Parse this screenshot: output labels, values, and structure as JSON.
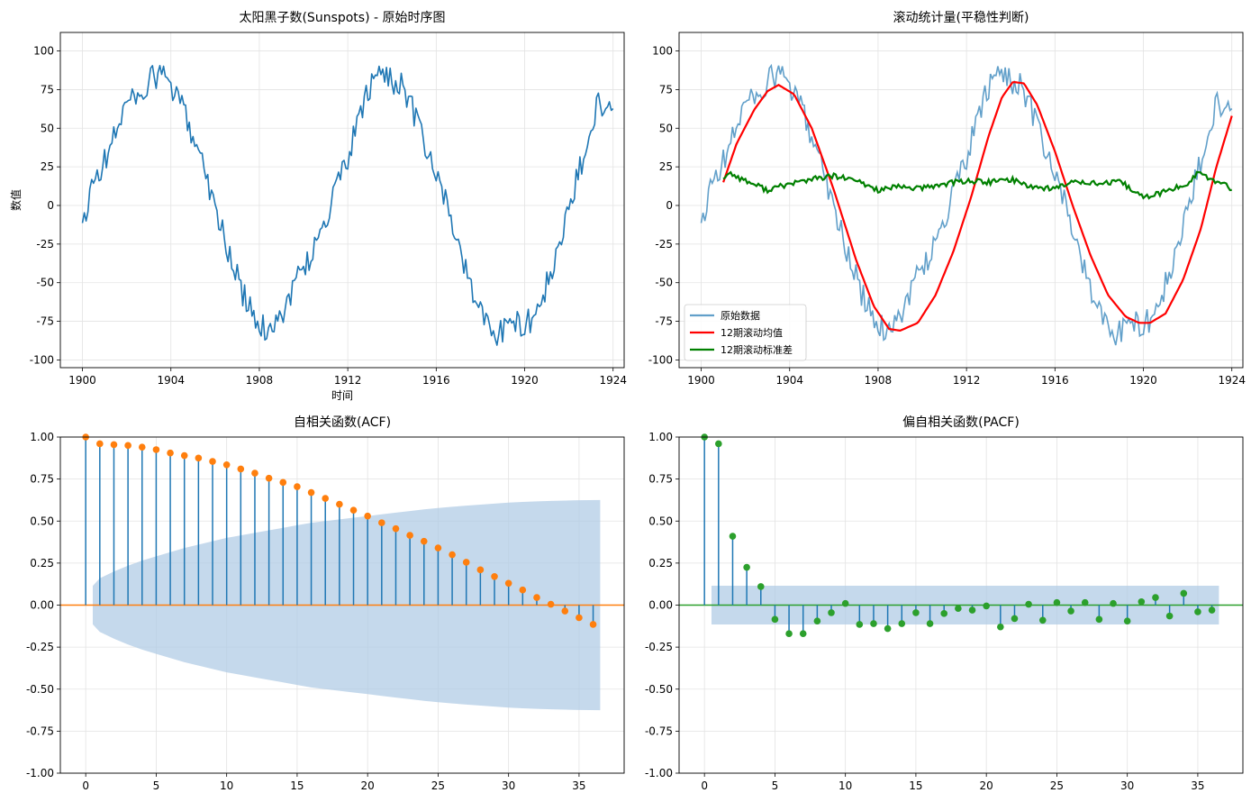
{
  "colors": {
    "blue": "#1f77b4",
    "orange": "#ff7f0e",
    "red": "#ff0000",
    "green": "#008000",
    "pacf_green": "#2ca02c",
    "band": "#aecbe5",
    "grid": "#e3e3e3"
  },
  "chart_data": [
    {
      "type": "line",
      "title": "太阳黑子数(Sunspots) - 原始时序图",
      "xlabel": "时间",
      "ylabel": "数值",
      "xlim": [
        1899.0,
        1924.5
      ],
      "ylim": [
        -105,
        112
      ],
      "x_ticks": [
        1900,
        1904,
        1908,
        1912,
        1916,
        1920,
        1924
      ],
      "y_ticks": [
        100,
        75,
        50,
        25,
        0,
        -25,
        -50,
        -75,
        -100
      ],
      "grid": true,
      "series": [
        {
          "x_start": 1900.0,
          "x_end": 1924.0,
          "keypoints_x": [
            1900.0,
            1900.2,
            1900.4,
            1900.8,
            1901.3,
            1901.8,
            1902.5,
            1903.2,
            1903.6,
            1904.0,
            1904.6,
            1905.2,
            1905.6,
            1906.0,
            1906.6,
            1907.2,
            1907.8,
            1908.0,
            1908.6,
            1909.2,
            1909.8,
            1910.4,
            1911.0,
            1911.6,
            1912.2,
            1912.8,
            1913.5,
            1914.0,
            1914.6,
            1915.2,
            1915.8,
            1916.4,
            1917.0,
            1917.6,
            1918.2,
            1918.8,
            1919.2,
            1919.8,
            1920.2,
            1920.8,
            1921.4,
            1922.0,
            1922.6,
            1923.0,
            1923.4,
            1923.8,
            1924.0
          ],
          "keypoints_y": [
            -12,
            -12,
            18,
            22,
            38,
            62,
            72,
            82,
            86,
            76,
            60,
            40,
            20,
            0,
            -30,
            -55,
            -75,
            -80,
            -78,
            -65,
            -45,
            -30,
            -10,
            15,
            40,
            70,
            88,
            82,
            75,
            50,
            25,
            5,
            -25,
            -55,
            -75,
            -82,
            -80,
            -76,
            -75,
            -60,
            -35,
            -5,
            30,
            55,
            68,
            62,
            69
          ],
          "noise": 9
        }
      ]
    },
    {
      "type": "line",
      "title": "滚动统计量(平稳性判断)",
      "xlim": [
        1899.0,
        1924.5
      ],
      "ylim": [
        -105,
        112
      ],
      "x_ticks": [
        1900,
        1904,
        1908,
        1912,
        1916,
        1920,
        1924
      ],
      "y_ticks": [
        100,
        75,
        50,
        25,
        0,
        -25,
        -50,
        -75,
        -100
      ],
      "grid": true,
      "legend": {
        "placement": "lower-left"
      },
      "series": [
        {
          "name": "原始数据",
          "role": "raw",
          "noise": 9
        },
        {
          "name": "12期滚动均值",
          "role": "mean",
          "keypoints_x": [
            1901.0,
            1901.6,
            1902.4,
            1903.0,
            1903.5,
            1904.2,
            1905.0,
            1906.0,
            1907.0,
            1907.8,
            1908.5,
            1909.0,
            1909.8,
            1910.6,
            1911.4,
            1912.2,
            1913.0,
            1913.6,
            1914.1,
            1914.6,
            1915.2,
            1916.0,
            1916.8,
            1917.6,
            1918.4,
            1919.2,
            1919.8,
            1920.3,
            1921.0,
            1921.8,
            1922.6,
            1923.3,
            1924.0
          ],
          "keypoints_y": [
            15,
            40,
            62,
            74,
            78,
            72,
            50,
            10,
            -35,
            -65,
            -80,
            -81,
            -76,
            -58,
            -30,
            5,
            45,
            70,
            80,
            79,
            65,
            35,
            0,
            -32,
            -58,
            -72,
            -76,
            -76,
            -70,
            -48,
            -15,
            25,
            58
          ]
        },
        {
          "name": "12期滚动标准差",
          "role": "std",
          "keypoints_x": [
            1901.0,
            1901.3,
            1902.0,
            1903.0,
            1904.0,
            1905.0,
            1906.0,
            1907.0,
            1908.0,
            1909.0,
            1910.0,
            1911.0,
            1912.0,
            1913.0,
            1914.0,
            1915.0,
            1916.0,
            1917.0,
            1918.0,
            1919.0,
            1920.0,
            1921.0,
            1922.0,
            1922.5,
            1923.0,
            1924.0
          ],
          "keypoints_y": [
            18,
            21,
            16,
            10,
            14,
            17,
            19,
            16,
            10,
            12,
            11,
            14,
            16,
            15,
            17,
            12,
            11,
            16,
            14,
            15,
            5,
            9,
            14,
            22,
            17,
            11
          ],
          "noise": 1.8
        }
      ]
    },
    {
      "type": "stem",
      "title": "自相关函数(ACF)",
      "xlim": [
        -1.8,
        38.2
      ],
      "ylim": [
        -1.0,
        1.0
      ],
      "x_ticks": [
        0,
        5,
        10,
        15,
        20,
        25,
        30,
        35
      ],
      "y_ticks": [
        1.0,
        0.75,
        0.5,
        0.25,
        0.0,
        -0.25,
        -0.5,
        -0.75,
        -1.0
      ],
      "y_tick_labels": [
        "1.00",
        "0.75",
        "0.50",
        "0.25",
        "0.00",
        "-0.25",
        "-0.50",
        "-0.75",
        "-1.00"
      ],
      "grid": true,
      "lags": [
        0,
        1,
        2,
        3,
        4,
        5,
        6,
        7,
        8,
        9,
        10,
        11,
        12,
        13,
        14,
        15,
        16,
        17,
        18,
        19,
        20,
        21,
        22,
        23,
        24,
        25,
        26,
        27,
        28,
        29,
        30,
        31,
        32,
        33,
        34,
        35,
        36
      ],
      "values": [
        1.0,
        0.96,
        0.955,
        0.95,
        0.94,
        0.925,
        0.905,
        0.89,
        0.875,
        0.855,
        0.835,
        0.81,
        0.785,
        0.755,
        0.73,
        0.705,
        0.67,
        0.635,
        0.6,
        0.565,
        0.53,
        0.49,
        0.455,
        0.415,
        0.38,
        0.34,
        0.3,
        0.255,
        0.21,
        0.17,
        0.13,
        0.09,
        0.045,
        0.005,
        -0.035,
        -0.075,
        -0.115
      ],
      "conf_band": [
        0.115,
        0.16,
        0.2,
        0.235,
        0.265,
        0.29,
        0.315,
        0.34,
        0.36,
        0.38,
        0.4,
        0.415,
        0.43,
        0.445,
        0.46,
        0.475,
        0.49,
        0.5,
        0.51,
        0.52,
        0.53,
        0.54,
        0.55,
        0.56,
        0.57,
        0.578,
        0.585,
        0.592,
        0.598,
        0.604,
        0.61,
        0.614,
        0.617,
        0.62,
        0.622,
        0.624,
        0.625
      ]
    },
    {
      "type": "stem",
      "title": "偏自相关函数(PACF)",
      "xlim": [
        -1.8,
        38.2
      ],
      "ylim": [
        -1.0,
        1.0
      ],
      "x_ticks": [
        0,
        5,
        10,
        15,
        20,
        25,
        30,
        35
      ],
      "y_ticks": [
        1.0,
        0.75,
        0.5,
        0.25,
        0.0,
        -0.25,
        -0.5,
        -0.75,
        -1.0
      ],
      "y_tick_labels": [
        "1.00",
        "0.75",
        "0.50",
        "0.25",
        "0.00",
        "-0.25",
        "-0.50",
        "-0.75",
        "-1.00"
      ],
      "grid": true,
      "lags": [
        0,
        1,
        2,
        3,
        4,
        5,
        6,
        7,
        8,
        9,
        10,
        11,
        12,
        13,
        14,
        15,
        16,
        17,
        18,
        19,
        20,
        21,
        22,
        23,
        24,
        25,
        26,
        27,
        28,
        29,
        30,
        31,
        32,
        33,
        34,
        35,
        36
      ],
      "values": [
        1.0,
        0.96,
        0.41,
        0.225,
        0.11,
        -0.085,
        -0.17,
        -0.17,
        -0.095,
        -0.045,
        0.01,
        -0.115,
        -0.11,
        -0.14,
        -0.11,
        -0.045,
        -0.11,
        -0.05,
        -0.02,
        -0.03,
        -0.005,
        -0.13,
        -0.08,
        0.005,
        -0.09,
        0.015,
        -0.035,
        0.015,
        -0.085,
        0.01,
        -0.095,
        0.02,
        0.045,
        -0.065,
        0.07,
        -0.04,
        -0.03
      ],
      "conf_band": [
        0.115
      ]
    }
  ]
}
